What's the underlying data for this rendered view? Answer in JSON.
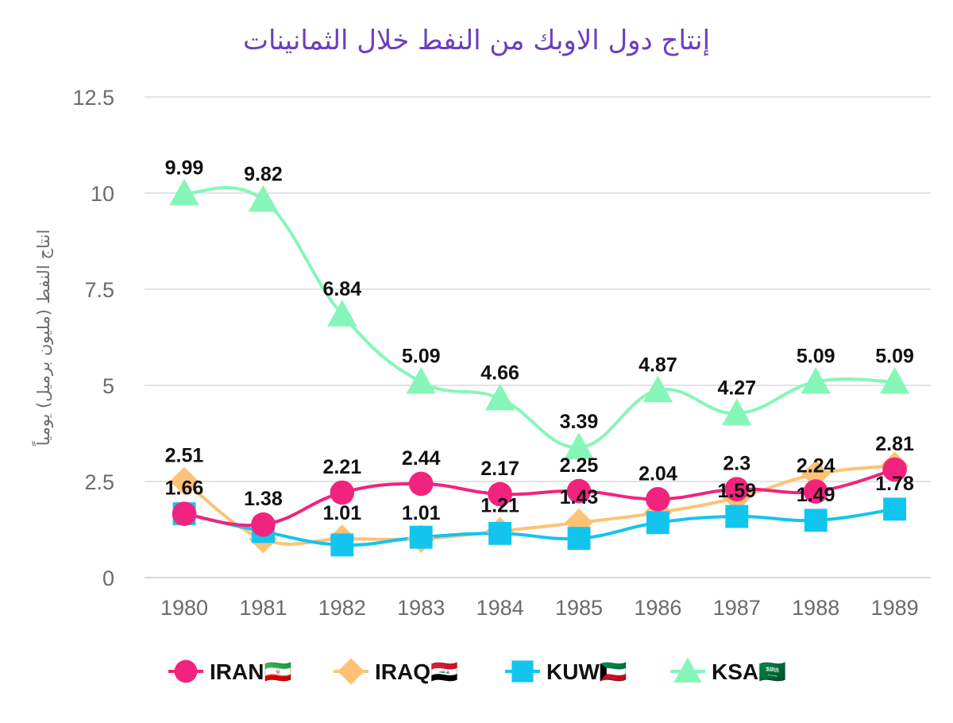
{
  "chart_data": {
    "type": "line",
    "title": "إنتاج دول الاوبك من النفط خلال الثمانينات",
    "xlabel": "",
    "ylabel": "انتاج النفط (مليون برميل) يومياً",
    "categories": [
      "1980",
      "1981",
      "1982",
      "1983",
      "1984",
      "1985",
      "1986",
      "1987",
      "1988",
      "1989"
    ],
    "ylim": [
      0,
      12.5
    ],
    "yticks": [
      0,
      2.5,
      5,
      7.5,
      10,
      12.5
    ],
    "ytick_labels": [
      "0",
      "2.5",
      "5",
      "7.5",
      "10",
      "12.5"
    ],
    "grid": true,
    "legend_position": "bottom",
    "series": [
      {
        "name": "IRAN🇮🇷",
        "color": "#f2237e",
        "marker": "circle",
        "values": [
          1.66,
          1.38,
          2.21,
          2.44,
          2.17,
          2.25,
          2.04,
          2.3,
          2.24,
          2.81
        ],
        "labels": [
          "1.66",
          "1.38",
          "2.21",
          "2.44",
          "2.17",
          "2.25",
          "2.04",
          "2.3",
          "2.24",
          "2.81"
        ]
      },
      {
        "name": "IRAQ🇮🇶",
        "color": "#fdc274",
        "marker": "diamond",
        "values": [
          2.51,
          1.0,
          1.01,
          1.01,
          1.21,
          1.43,
          1.69,
          2.08,
          2.69,
          2.91
        ],
        "labels": [
          "2.51",
          "",
          "1.01",
          "1.01",
          "1.21",
          "1.43",
          "",
          "",
          "",
          ""
        ]
      },
      {
        "name": "KUW🇰🇼",
        "color": "#12c5ef",
        "marker": "square",
        "values": [
          1.66,
          1.2,
          0.85,
          1.05,
          1.15,
          1.02,
          1.43,
          1.59,
          1.49,
          1.78
        ],
        "labels": [
          "",
          "",
          "",
          "",
          "",
          "",
          "",
          "1.59",
          "1.49",
          "1.78"
        ]
      },
      {
        "name": "KSA🇸🇦",
        "color": "#86f6b8",
        "marker": "triangle",
        "values": [
          9.99,
          9.82,
          6.84,
          5.09,
          4.66,
          3.39,
          4.87,
          4.27,
          5.09,
          5.09
        ],
        "labels": [
          "9.99",
          "9.82",
          "6.84",
          "5.09",
          "4.66",
          "3.39",
          "4.87",
          "4.27",
          "5.09",
          "5.09"
        ]
      }
    ]
  }
}
